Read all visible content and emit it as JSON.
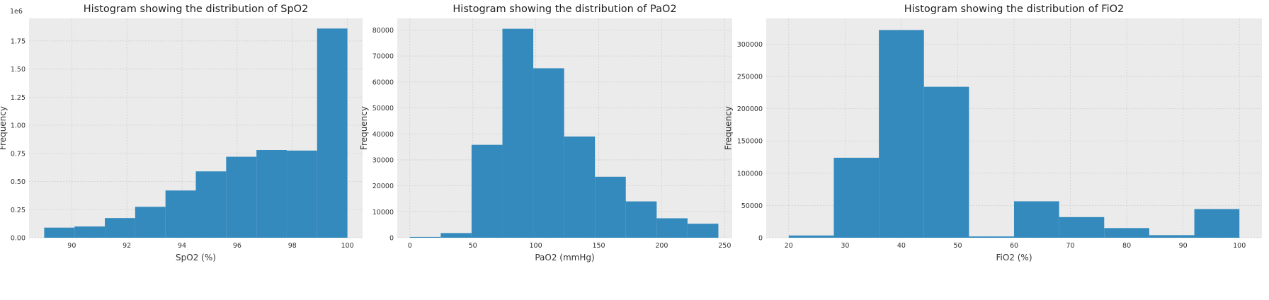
{
  "chart_data": [
    {
      "type": "bar",
      "title": "Histogram showing the distribution of SpO2",
      "xlabel": "SpO2 (%)",
      "ylabel": "Frequency",
      "y_offset_label": "1e6",
      "xlim": [
        88.45,
        100.55
      ],
      "ylim": [
        0,
        1950000
      ],
      "grid": true,
      "xticks": [
        90,
        92,
        94,
        96,
        98,
        100
      ],
      "xtick_labels": [
        "90",
        "92",
        "94",
        "96",
        "98",
        "100"
      ],
      "yticks": [
        0,
        250000,
        500000,
        750000,
        1000000,
        1250000,
        1500000,
        1750000
      ],
      "ytick_labels": [
        "0.00",
        "0.25",
        "0.50",
        "0.75",
        "1.00",
        "1.25",
        "1.50",
        "1.75"
      ],
      "bin_edges": [
        89,
        90.1,
        91.2,
        92.3,
        93.4,
        94.5,
        95.6,
        96.7,
        97.8,
        98.9,
        100
      ],
      "values": [
        90000,
        100000,
        175000,
        275000,
        420000,
        590000,
        720000,
        780000,
        775000,
        1860000
      ]
    },
    {
      "type": "bar",
      "title": "Histogram showing the distribution of PaO2",
      "xlabel": "PaO2 (mmHg)",
      "ylabel": "Frequency",
      "y_offset_label": "",
      "xlim": [
        -10,
        256
      ],
      "ylim": [
        0,
        84500
      ],
      "grid": true,
      "xticks": [
        0,
        50,
        100,
        150,
        200,
        250
      ],
      "xtick_labels": [
        "0",
        "50",
        "100",
        "150",
        "200",
        "250"
      ],
      "yticks": [
        0,
        10000,
        20000,
        30000,
        40000,
        50000,
        60000,
        70000,
        80000
      ],
      "ytick_labels": [
        "0",
        "10000",
        "20000",
        "30000",
        "40000",
        "50000",
        "60000",
        "70000",
        "80000"
      ],
      "bin_edges": [
        0,
        24.5,
        49,
        73.5,
        98,
        122.5,
        147,
        171.5,
        196,
        220.5,
        245
      ],
      "values": [
        300,
        1800,
        35800,
        80500,
        65300,
        39000,
        23500,
        14000,
        7500,
        5400
      ]
    },
    {
      "type": "bar",
      "title": "Histogram showing the distribution of FiO2",
      "xlabel": "FiO2 (%)",
      "ylabel": "Frequency",
      "y_offset_label": "",
      "xlim": [
        16,
        104
      ],
      "ylim": [
        0,
        340000
      ],
      "grid": true,
      "xticks": [
        20,
        30,
        40,
        50,
        60,
        70,
        80,
        90,
        100
      ],
      "xtick_labels": [
        "20",
        "30",
        "40",
        "50",
        "60",
        "70",
        "80",
        "90",
        "100"
      ],
      "yticks": [
        0,
        50000,
        100000,
        150000,
        200000,
        250000,
        300000
      ],
      "ytick_labels": [
        "0",
        "50000",
        "100000",
        "150000",
        "200000",
        "250000",
        "300000"
      ],
      "bin_edges": [
        20,
        28,
        36,
        44,
        52,
        60,
        68,
        76,
        84,
        92,
        100
      ],
      "values": [
        3500,
        124000,
        322000,
        234000,
        2000,
        56500,
        32000,
        15000,
        4000,
        44500
      ]
    }
  ]
}
